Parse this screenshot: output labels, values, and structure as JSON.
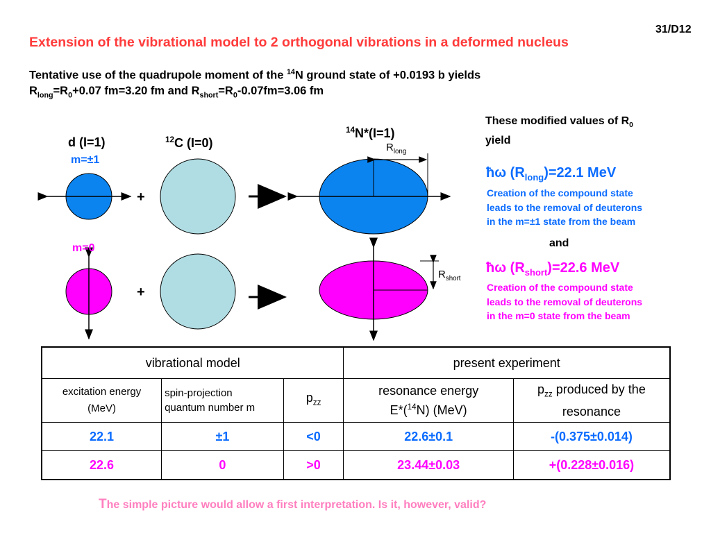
{
  "slide_number": "31/D12",
  "title": "Extension of the vibrational model to 2 orthogonal vibrations in a deformed nucleus",
  "subtitle": {
    "line1_a": "Tentative use of the quadrupole moment of the ",
    "line1_sup": "14",
    "line1_b": "N ground state of +0.0193 b yields",
    "line2": {
      "r": "R",
      "long": "long",
      "eq1": "=R",
      "zero": "0",
      "mid": "+0.07 fm=3.20 fm and R",
      "short": "short",
      "eq2": "=R",
      "zero2": "0",
      "end": "-0.07fm=3.06 fm"
    }
  },
  "diagram": {
    "d_label": "d (I=1)",
    "c_label_sup": "12",
    "c_label": "C (I=0)",
    "n_label_sup": "14",
    "n_label": "N*(I=1)",
    "m_pm1": "m=±1",
    "m_0": "m=0",
    "plus": "+",
    "r_long": {
      "r": "R",
      "sub": "long"
    },
    "r_short": {
      "r": "R",
      "sub": "short"
    }
  },
  "right_panel": {
    "intro_a": "These modified values of R",
    "intro_sub": "0",
    "intro_b": "yield",
    "res1": {
      "hw": "ħω (R",
      "sub": "long",
      "val": ")=22.1 MeV",
      "desc1": "Creation of the compound state",
      "desc2": "leads to the removal of deuterons",
      "desc3": "in the m=±1 state from the beam"
    },
    "and": "and",
    "res2": {
      "hw": "ħω (R",
      "sub": "short",
      "val": ")=22.6 MeV",
      "desc1": "Creation of the compound state",
      "desc2": "leads to the removal of deuterons",
      "desc3": "in the m=0 state from the beam"
    }
  },
  "table": {
    "group1": "vibrational model",
    "group2": "present experiment",
    "h_exc_1": "excitation energy",
    "h_exc_2": "(MeV)",
    "h_spin_1": "spin-projection",
    "h_spin_2": "quantum number m",
    "h_pzz_p": "p",
    "h_pzz_sub": "zz",
    "h_res_1": "resonance energy",
    "h_res_2a": "E*(",
    "h_res_2sup": "14",
    "h_res_2b": "N) (MeV)",
    "h_prod_p": "p",
    "h_prod_sub": "zz",
    "h_prod_a": " produced by the",
    "h_prod_b": "resonance",
    "rows": [
      {
        "exc": "22.1",
        "m": "±1",
        "pzz": "<0",
        "res": "22.6±0.1",
        "prod": "-(0.375±0.014)"
      },
      {
        "exc": "22.6",
        "m": "0",
        "pzz": ">0",
        "res": "23.44±0.03",
        "prod": "+(0.228±0.016)"
      }
    ]
  },
  "footer": {
    "first": "T",
    "rest": "he simple picture would allow a first interpretation. Is it, however, valid?"
  },
  "colors": {
    "red": "#ff3b3b",
    "blue": "#0b6cff",
    "magenta": "#ff00ff",
    "light_blue": "#b0dde3",
    "pink": "#ff7fbf"
  }
}
